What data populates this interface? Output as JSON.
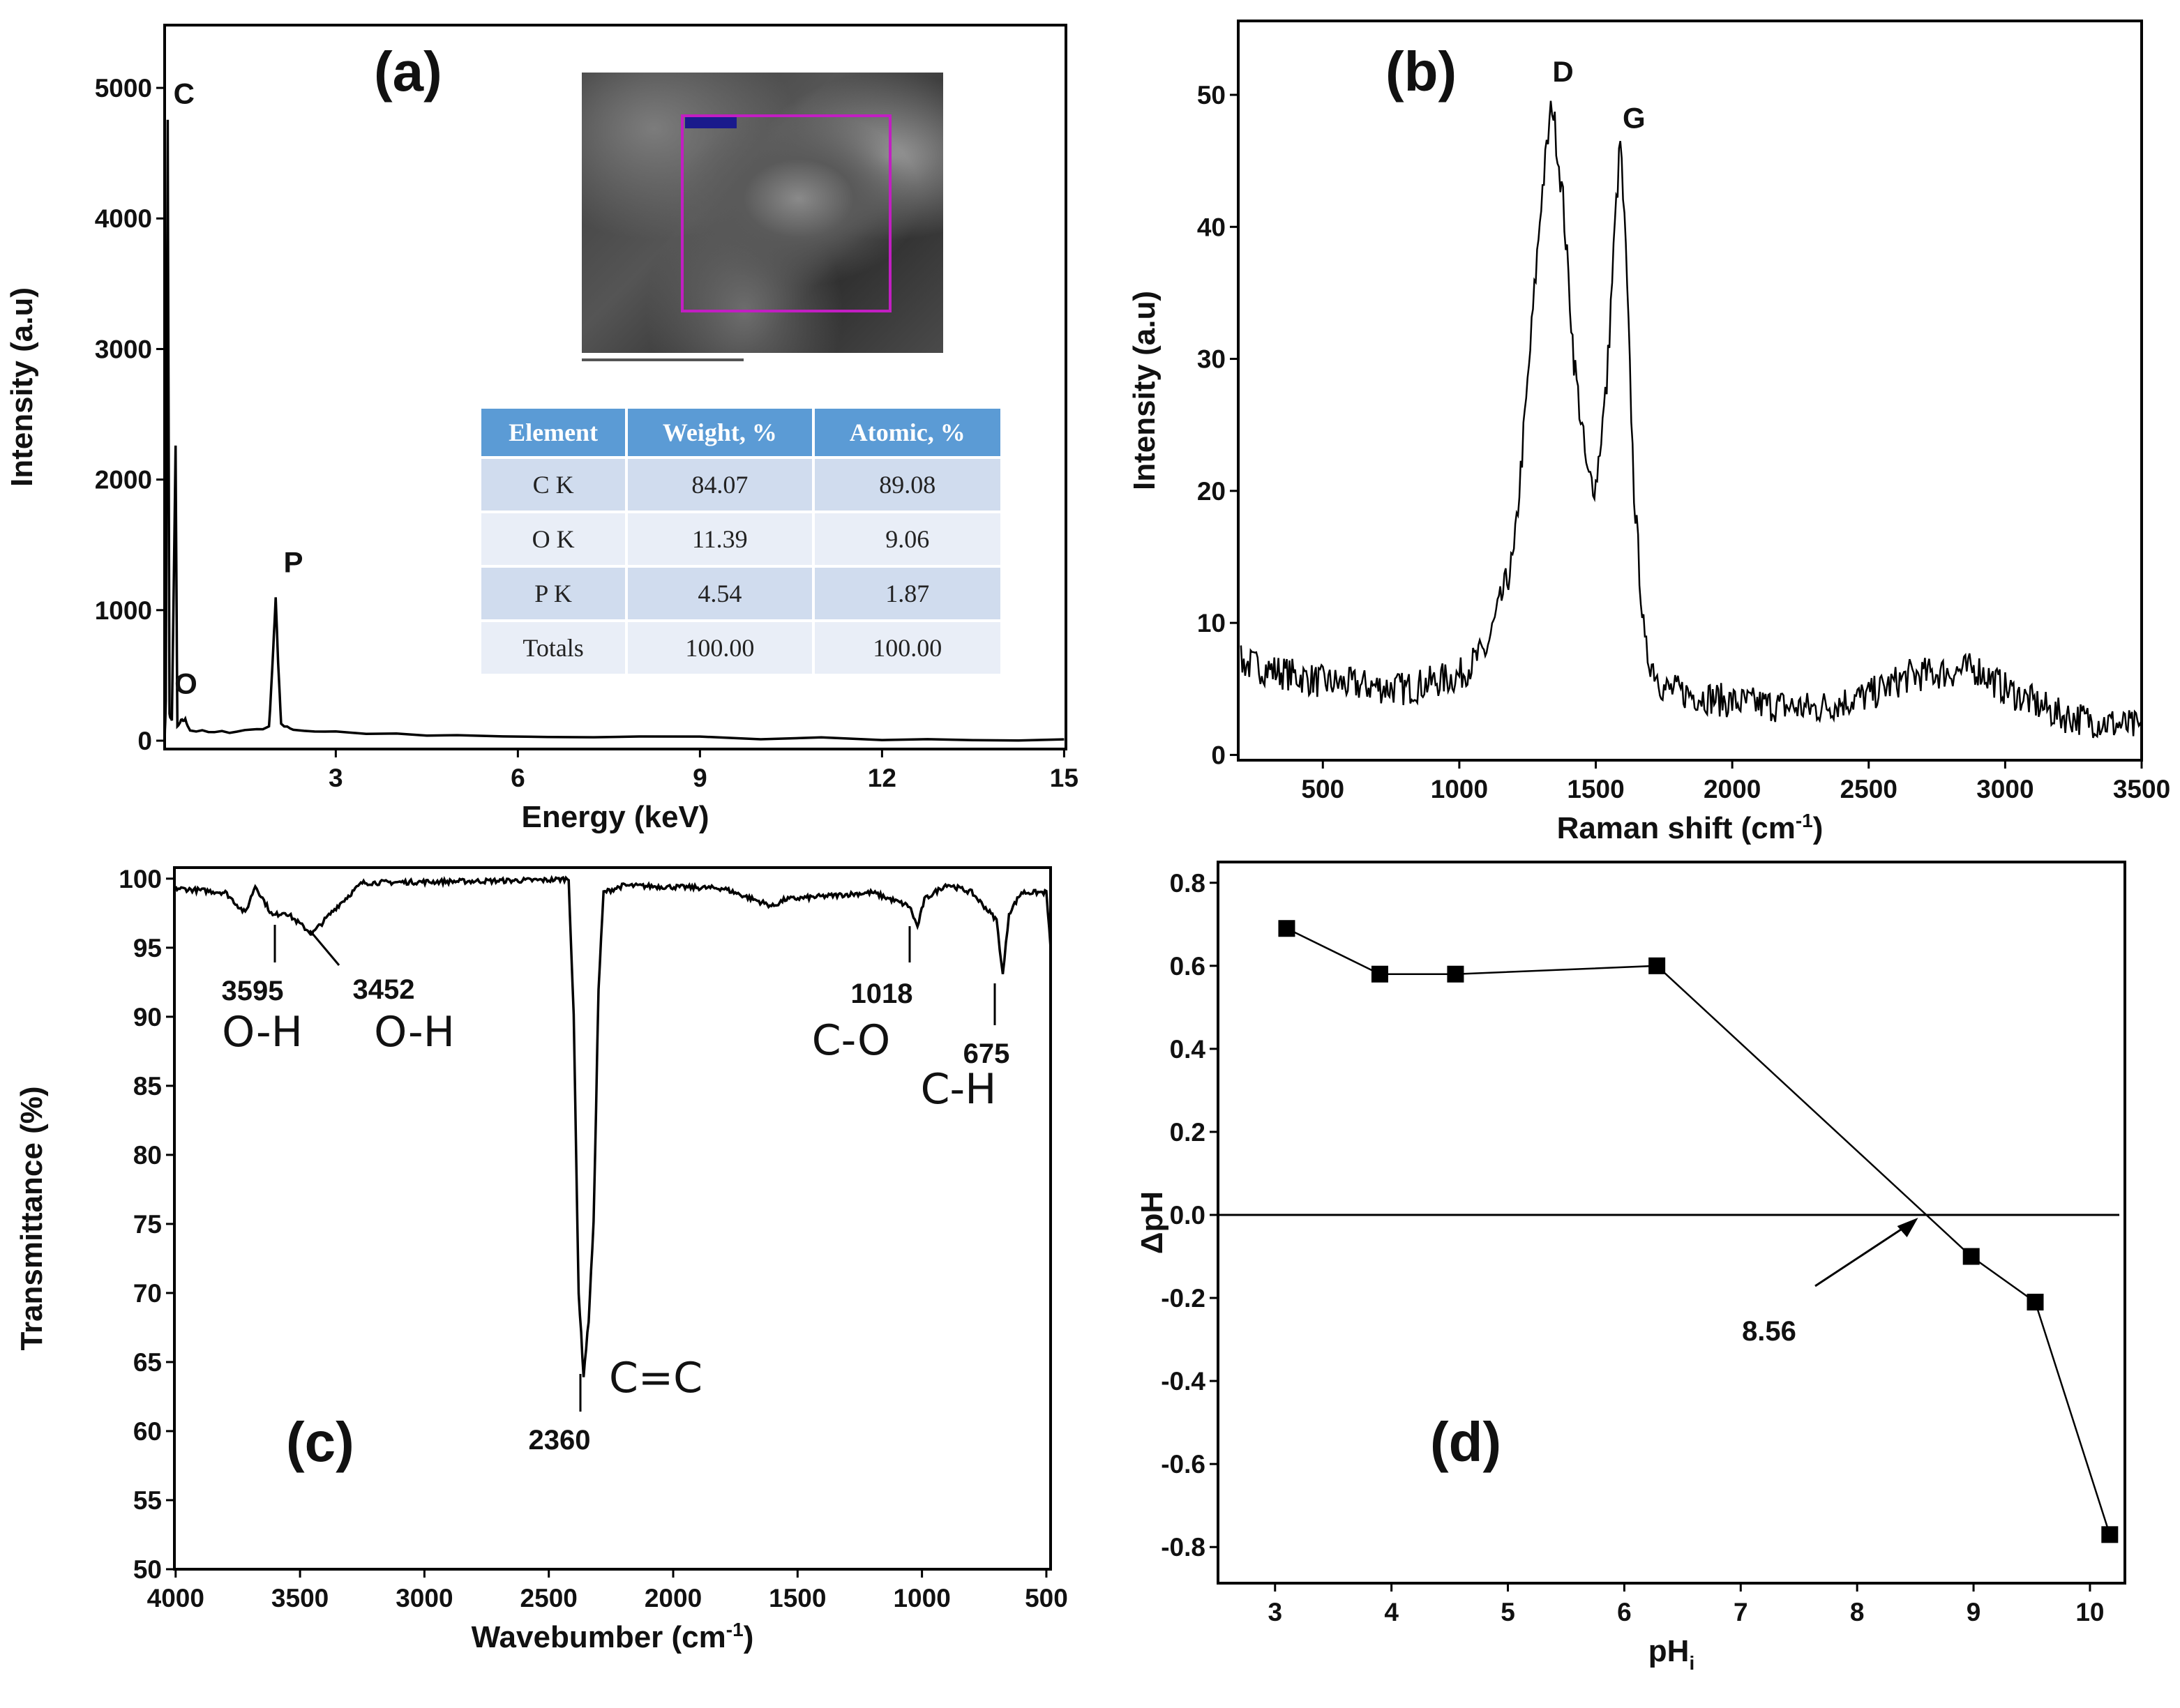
{
  "colors": {
    "line": "#000000",
    "table_header": "#5b9bd5",
    "table_row_dark": "#d0dcee",
    "table_row_light": "#e9eef7",
    "roi": "#c21ec2"
  },
  "edx_table": {
    "headers": [
      "Element",
      "Weight, %",
      "Atomic, %"
    ],
    "rows": [
      [
        "C K",
        "84.07",
        "89.08"
      ],
      [
        "O K",
        "11.39",
        "9.06"
      ],
      [
        "P K",
        "4.54",
        "1.87"
      ],
      [
        "Totals",
        "100.00",
        "100.00"
      ]
    ]
  },
  "chart_data": [
    {
      "panel": "(a)",
      "type": "line",
      "xlabel": "Energy (keV)",
      "ylabel": "Intensity (a.u)",
      "xlim": [
        0.18,
        15.03
      ],
      "ylim": [
        -64,
        5481
      ],
      "xticks": [
        3,
        6,
        9,
        12,
        15
      ],
      "yticks": [
        0,
        1000,
        2000,
        3000,
        4000,
        5000
      ],
      "points": [
        [
          0.18,
          0
        ],
        [
          0.2,
          300
        ],
        [
          0.23,
          4750
        ],
        [
          0.26,
          200
        ],
        [
          0.3,
          150
        ],
        [
          0.36,
          2250
        ],
        [
          0.39,
          100
        ],
        [
          0.45,
          150
        ],
        [
          0.52,
          160
        ],
        [
          0.6,
          80
        ],
        [
          1,
          60
        ],
        [
          1.5,
          80
        ],
        [
          1.9,
          100
        ],
        [
          1.97,
          700
        ],
        [
          2.01,
          1100
        ],
        [
          2.05,
          600
        ],
        [
          2.1,
          120
        ],
        [
          2.3,
          80
        ],
        [
          3,
          60
        ],
        [
          5,
          40
        ],
        [
          8,
          25
        ],
        [
          12,
          15
        ],
        [
          15,
          10
        ]
      ],
      "peak_labels": [
        {
          "text": "C",
          "x": 0.5,
          "y": 4880
        },
        {
          "text": "O",
          "x": 0.53,
          "y": 360
        },
        {
          "text": "P",
          "x": 2.3,
          "y": 1290
        }
      ]
    },
    {
      "panel": "(b)",
      "type": "line",
      "xlabel": "Raman shift (cm",
      "xlabel_sup": "-1",
      "xlabel_end": ")",
      "ylabel": "Intensity (a.u)",
      "xlim": [
        190,
        3500
      ],
      "ylim": [
        -0.4,
        55.6
      ],
      "xticks": [
        500,
        1000,
        1500,
        2000,
        2500,
        3000,
        3500
      ],
      "yticks": [
        0,
        10,
        20,
        30,
        40,
        50
      ],
      "points": [
        [
          200,
          7
        ],
        [
          500,
          5.5
        ],
        [
          800,
          5
        ],
        [
          1000,
          6
        ],
        [
          1100,
          8
        ],
        [
          1200,
          15
        ],
        [
          1250,
          28
        ],
        [
          1300,
          42
        ],
        [
          1340,
          49.5
        ],
        [
          1380,
          42
        ],
        [
          1420,
          30
        ],
        [
          1470,
          21
        ],
        [
          1500,
          20.5
        ],
        [
          1540,
          28
        ],
        [
          1570,
          40
        ],
        [
          1590,
          46.5
        ],
        [
          1610,
          38
        ],
        [
          1640,
          20
        ],
        [
          1680,
          8
        ],
        [
          1750,
          5
        ],
        [
          2000,
          4
        ],
        [
          2300,
          3.5
        ],
        [
          2500,
          4.5
        ],
        [
          2650,
          6
        ],
        [
          2900,
          6.5
        ],
        [
          3000,
          5
        ],
        [
          3200,
          3
        ],
        [
          3500,
          2
        ]
      ],
      "peak_labels": [
        {
          "text": "D",
          "x": 1380,
          "y": 51
        },
        {
          "text": "G",
          "x": 1640,
          "y": 47.5
        }
      ]
    },
    {
      "panel": "(c)",
      "type": "line",
      "xlabel": "Wavebumber (cm",
      "xlabel_sup": "-1",
      "xlabel_end": ")",
      "ylabel": "Transmittance (%)",
      "xlim": [
        4005,
        483
      ],
      "ylim": [
        50,
        100.8
      ],
      "xticks": [
        4000,
        3500,
        3000,
        2500,
        2000,
        1500,
        1000,
        500
      ],
      "yticks": [
        50,
        55,
        60,
        65,
        70,
        75,
        80,
        85,
        90,
        95,
        100
      ],
      "points": [
        [
          4000,
          99.3
        ],
        [
          3800,
          99
        ],
        [
          3720,
          97.5
        ],
        [
          3680,
          99.5
        ],
        [
          3610,
          97.3
        ],
        [
          3560,
          97.6
        ],
        [
          3452,
          96
        ],
        [
          3350,
          98
        ],
        [
          3250,
          99.7
        ],
        [
          2500,
          99.9
        ],
        [
          2420,
          100
        ],
        [
          2400,
          90
        ],
        [
          2380,
          70
        ],
        [
          2360,
          64
        ],
        [
          2340,
          68
        ],
        [
          2320,
          75
        ],
        [
          2300,
          92
        ],
        [
          2280,
          99
        ],
        [
          2200,
          99.5
        ],
        [
          1800,
          99.3
        ],
        [
          1600,
          98
        ],
        [
          1550,
          98.5
        ],
        [
          1200,
          99
        ],
        [
          1050,
          98
        ],
        [
          1018,
          96.5
        ],
        [
          990,
          98.5
        ],
        [
          900,
          99.6
        ],
        [
          800,
          99
        ],
        [
          700,
          97
        ],
        [
          675,
          93
        ],
        [
          650,
          97.5
        ],
        [
          600,
          99
        ],
        [
          500,
          99
        ],
        [
          483,
          95
        ]
      ],
      "annotations": [
        {
          "wavenumber": "3595",
          "group": "O-H"
        },
        {
          "wavenumber": "3452",
          "group": "O-H"
        },
        {
          "wavenumber": "1018",
          "group": "C-O"
        },
        {
          "wavenumber": "675",
          "group": "C-H"
        },
        {
          "wavenumber": "2360",
          "group": "C=C"
        }
      ]
    },
    {
      "panel": "(d)",
      "type": "line",
      "xlabel": "pH",
      "xlabel_sub": "i",
      "ylabel": "ΔpH",
      "xlim": [
        2.51,
        10.3
      ],
      "ylim": [
        -0.887,
        0.85
      ],
      "xticks": [
        3,
        4,
        5,
        6,
        7,
        8,
        9,
        10
      ],
      "yticks": [
        "0.8",
        "0.6",
        "0.4",
        "0.2",
        "0.0",
        "-0.2",
        "-0.4",
        "-0.6",
        "-0.8"
      ],
      "x": [
        3.1,
        3.9,
        4.55,
        6.28,
        8.98,
        9.53,
        10.17
      ],
      "y": [
        0.69,
        0.58,
        0.58,
        0.6,
        -0.1,
        -0.21,
        -0.77
      ],
      "reference_line": 0,
      "annotation": {
        "text": "8.56",
        "x": 8.56,
        "y": 0
      }
    }
  ]
}
